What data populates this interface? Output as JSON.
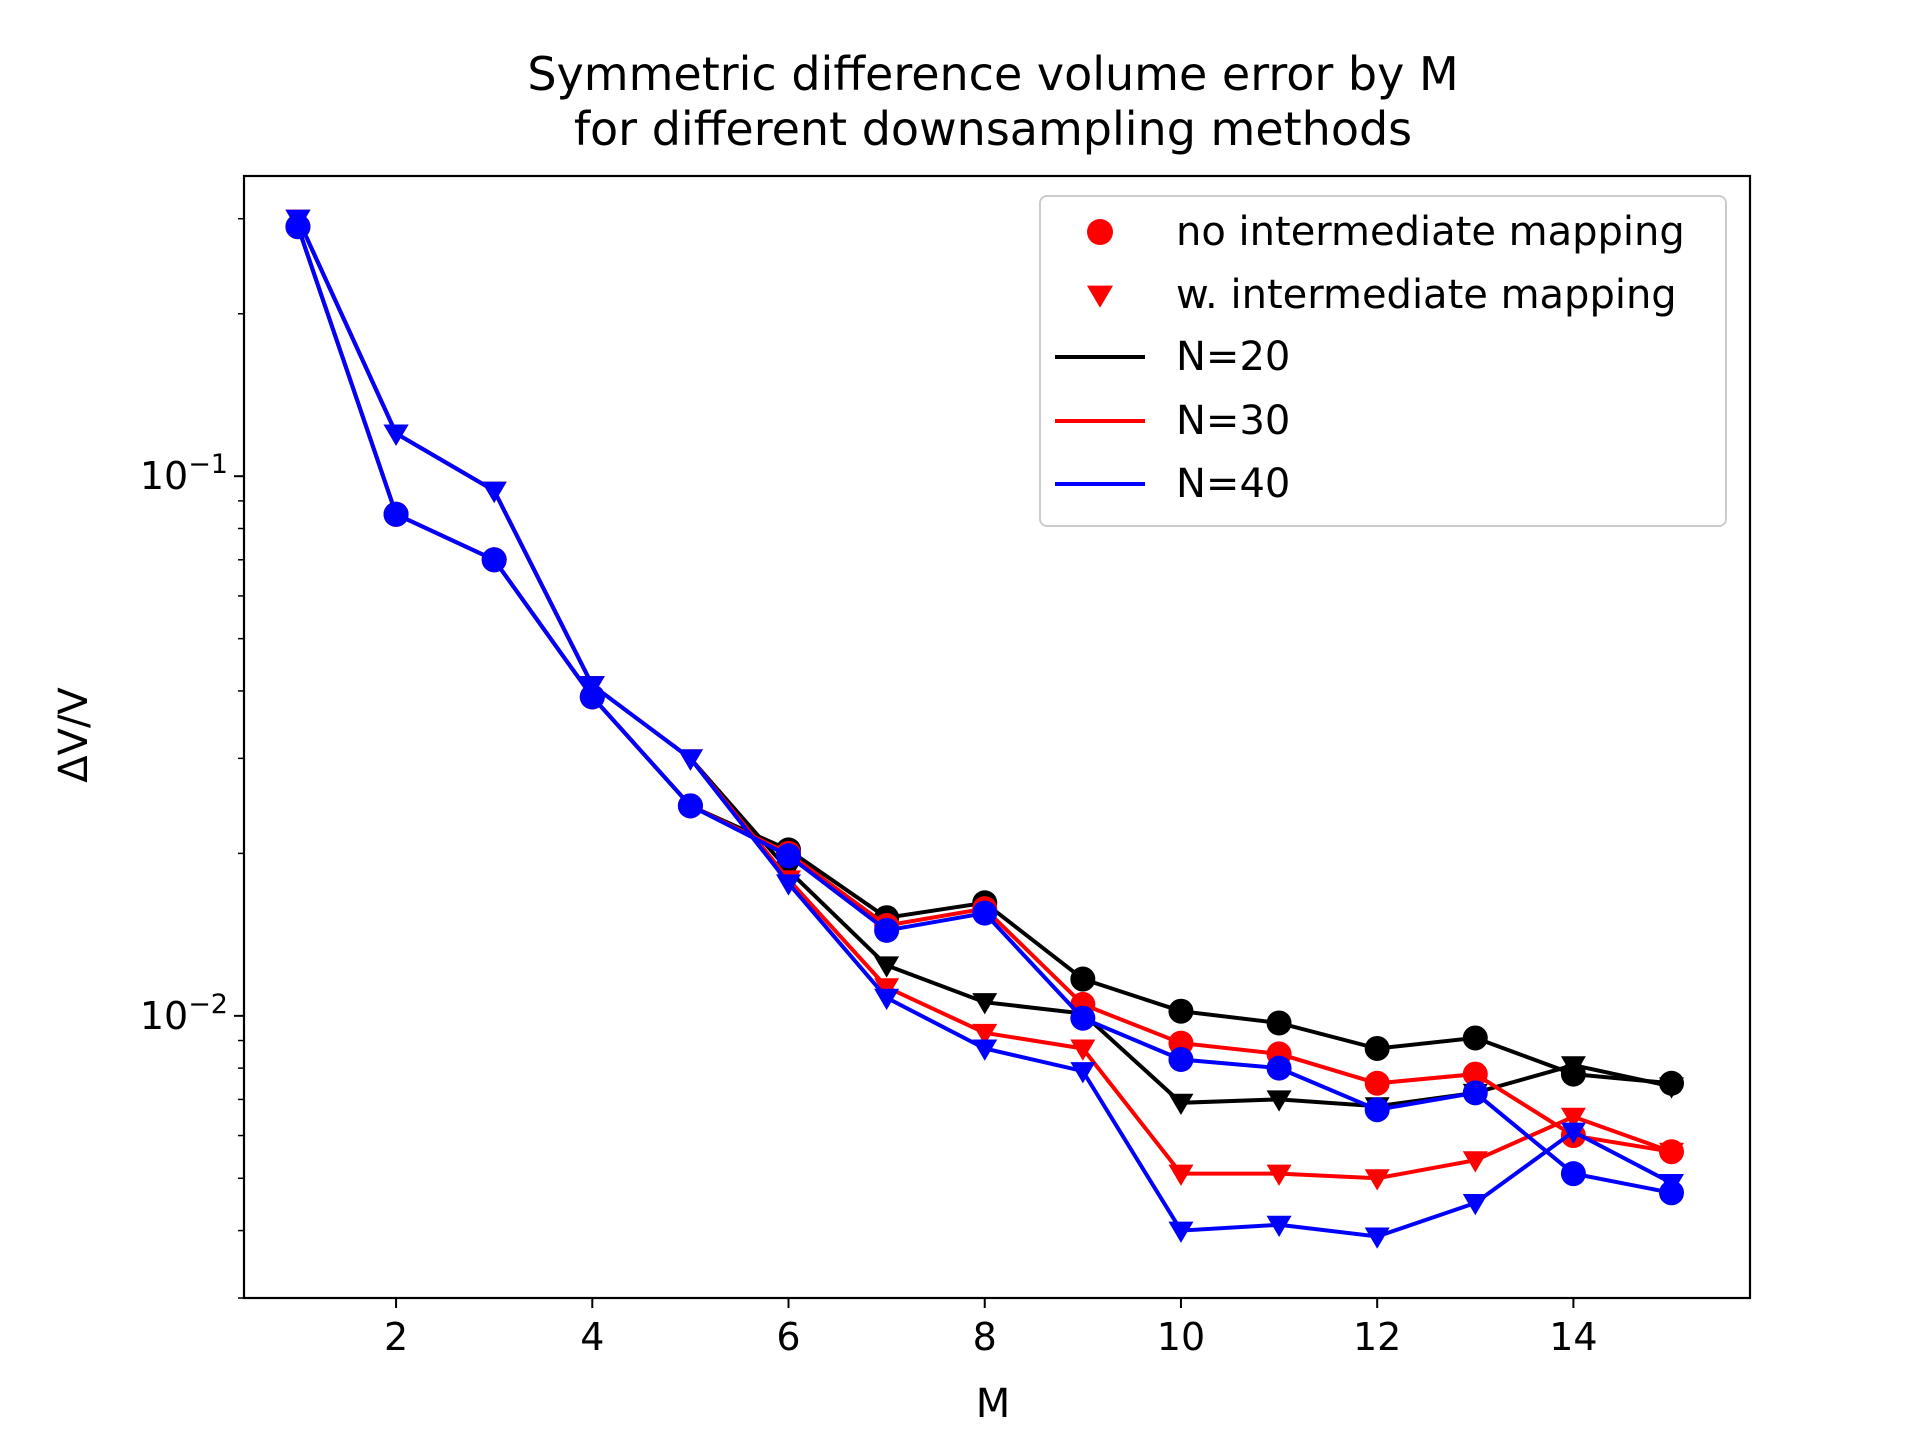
{
  "chart_data": {
    "type": "line",
    "title": "Symmetric difference volume error by M",
    "subtitle": "for different downsampling methods",
    "xlabel": "M",
    "ylabel": "ΔV/V",
    "y_scale": "log",
    "xlim": [
      0.45,
      15.8
    ],
    "ylim": [
      0.003,
      0.36
    ],
    "xticks": [
      2,
      4,
      6,
      8,
      10,
      12,
      14
    ],
    "xtick_labels": [
      "2",
      "4",
      "6",
      "8",
      "10",
      "12",
      "14"
    ],
    "yticks": [
      0.1,
      0.01
    ],
    "ytick_labels": [
      {
        "base": "10",
        "exp": "−1"
      },
      {
        "base": "10",
        "exp": "−2"
      }
    ],
    "grid": false,
    "legend": {
      "position": "top-right",
      "marker_entries": [
        {
          "label": "no intermediate mapping",
          "marker": "circle",
          "color": "#ff0000"
        },
        {
          "label": "w. intermediate mapping",
          "marker": "triangle-down",
          "color": "#ff0000"
        }
      ],
      "line_entries": [
        {
          "label": "N=20",
          "color": "#000000"
        },
        {
          "label": "N=30",
          "color": "#ff0000"
        },
        {
          "label": "N=40",
          "color": "#0000ff"
        }
      ]
    },
    "x": [
      1,
      2,
      3,
      4,
      5,
      6,
      7,
      8,
      9,
      10,
      11,
      12,
      13,
      14,
      15
    ],
    "series": [
      {
        "group": "N=20",
        "method": "no intermediate mapping",
        "marker": "circle",
        "color": "#000000",
        "values": [
          0.29,
          0.085,
          0.07,
          0.039,
          0.0245,
          0.0203,
          0.0152,
          0.0162,
          0.0117,
          0.0102,
          0.0097,
          0.0087,
          0.0091,
          0.0078,
          0.0075
        ]
      },
      {
        "group": "N=20",
        "method": "w. intermediate mapping",
        "marker": "triangle-down",
        "color": "#000000",
        "values": [
          0.3,
          0.12,
          0.094,
          0.041,
          0.03,
          0.0186,
          0.0124,
          0.0106,
          0.0101,
          0.0069,
          0.007,
          0.0068,
          0.0072,
          0.0081,
          0.0074
        ]
      },
      {
        "group": "N=30",
        "method": "no intermediate mapping",
        "marker": "circle",
        "color": "#ff0000",
        "values": [
          0.29,
          0.085,
          0.07,
          0.039,
          0.0245,
          0.02,
          0.0147,
          0.0158,
          0.0105,
          0.0089,
          0.0085,
          0.0075,
          0.0078,
          0.006,
          0.0056
        ]
      },
      {
        "group": "N=30",
        "method": "w. intermediate mapping",
        "marker": "triangle-down",
        "color": "#ff0000",
        "values": [
          0.3,
          0.12,
          0.094,
          0.041,
          0.03,
          0.0179,
          0.0113,
          0.0093,
          0.0087,
          0.0051,
          0.0051,
          0.005,
          0.0054,
          0.0065,
          0.0056
        ]
      },
      {
        "group": "N=40",
        "method": "no intermediate mapping",
        "marker": "circle",
        "color": "#0000ff",
        "values": [
          0.29,
          0.085,
          0.07,
          0.039,
          0.0245,
          0.0198,
          0.0144,
          0.0155,
          0.0099,
          0.0083,
          0.008,
          0.0067,
          0.0072,
          0.0051,
          0.0047
        ]
      },
      {
        "group": "N=40",
        "method": "w. intermediate mapping",
        "marker": "triangle-down",
        "color": "#0000ff",
        "values": [
          0.3,
          0.12,
          0.094,
          0.041,
          0.03,
          0.0176,
          0.0108,
          0.0087,
          0.0079,
          0.004,
          0.0041,
          0.0039,
          0.0045,
          0.0061,
          0.0049
        ]
      }
    ]
  }
}
